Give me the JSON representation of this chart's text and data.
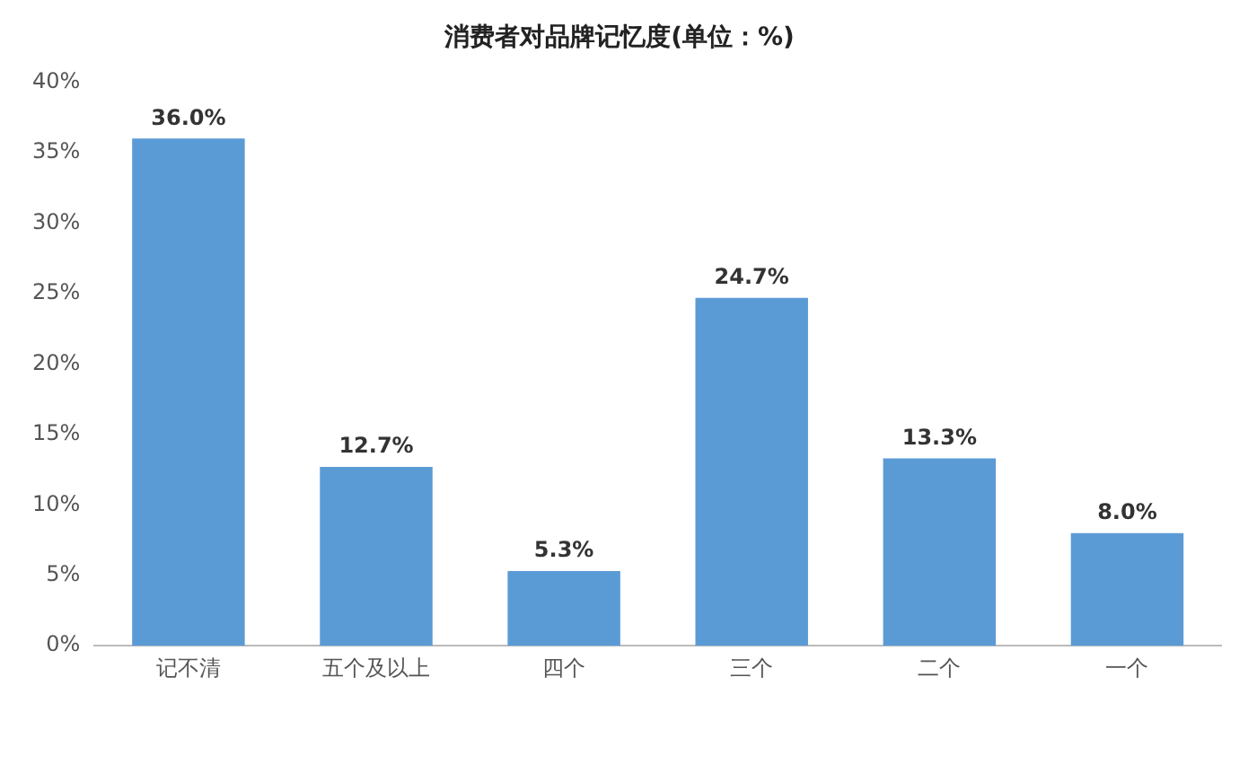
{
  "chart_data": {
    "type": "bar",
    "title": "消费者对品牌记忆度(单位：%)",
    "categories": [
      "记不清",
      "五个及以上",
      "四个",
      "三个",
      "二个",
      "一个"
    ],
    "values": [
      36.0,
      12.7,
      5.3,
      24.7,
      13.3,
      8.0
    ],
    "value_labels": [
      "36.0%",
      "12.7%",
      "5.3%",
      "24.7%",
      "13.3%",
      "8.0%"
    ],
    "color": "#5b9bd5",
    "ylim": [
      0,
      40
    ],
    "yticks": [
      {
        "value": 0,
        "label": "0%"
      },
      {
        "value": 5,
        "label": "5%"
      },
      {
        "value": 10,
        "label": "10%"
      },
      {
        "value": 15,
        "label": "15%"
      },
      {
        "value": 20,
        "label": "20%"
      },
      {
        "value": 25,
        "label": "25%"
      },
      {
        "value": 30,
        "label": "30%"
      },
      {
        "value": 35,
        "label": "35%"
      },
      {
        "value": 40,
        "label": "40%"
      }
    ],
    "grid": false,
    "legend": false
  }
}
